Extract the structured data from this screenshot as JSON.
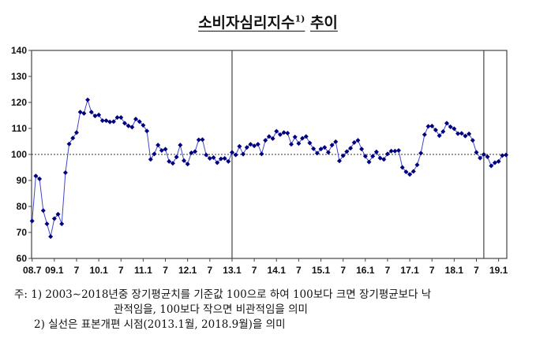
{
  "title": {
    "main": "소비자심리지수",
    "sup": "1)",
    "suffix": "추이"
  },
  "chart_data": {
    "type": "line",
    "title": "소비자심리지수1) 추이",
    "start": "2008.7",
    "end": "2019.3",
    "frequency": "monthly",
    "ylim": [
      60,
      140
    ],
    "yticks": [
      60,
      70,
      80,
      90,
      100,
      110,
      120,
      130,
      140
    ],
    "reference_line": 100,
    "xtick_labels": [
      "08.7",
      "09.1",
      "7",
      "10.1",
      "7",
      "11.1",
      "7",
      "12.1",
      "7",
      "13.1",
      "7",
      "14.1",
      "7",
      "15.1",
      "7",
      "16.1",
      "7",
      "17.1",
      "7",
      "18.1",
      "7",
      "19.1"
    ],
    "vertical_lines": [
      "2013.1",
      "2018.9"
    ],
    "series": [
      {
        "name": "소비자심리지수",
        "color": "#00007f",
        "values": [
          74.4,
          91.7,
          90.6,
          78.4,
          73.3,
          68.4,
          75.3,
          77.0,
          73.3,
          93.0,
          104.0,
          106.3,
          108.4,
          116.3,
          115.8,
          121.0,
          116.3,
          114.8,
          115.2,
          113.0,
          113.0,
          112.5,
          112.6,
          114.2,
          114.2,
          112.0,
          111.0,
          110.5,
          113.6,
          112.6,
          111.2,
          109.0,
          98.1,
          100.2,
          103.6,
          101.5,
          102.0,
          97.3,
          96.6,
          99.0,
          103.6,
          97.6,
          96.3,
          100.6,
          101.1,
          105.6,
          105.7,
          99.8,
          98.5,
          98.8,
          96.8,
          98.3,
          98.5,
          97.3,
          100.8,
          99.8,
          103.1,
          100.1,
          102.7,
          103.9,
          103.3,
          103.9,
          100.2,
          105.4,
          106.9,
          106.1,
          108.9,
          107.6,
          108.4,
          108.2,
          103.9,
          106.7,
          104.2,
          106.2,
          106.9,
          104.4,
          102.2,
          100.5,
          102.1,
          102.7,
          100.8,
          103.6,
          104.9,
          97.5,
          99.5,
          101.1,
          102.4,
          104.6,
          105.4,
          102.1,
          99.3,
          97.1,
          99.3,
          101.0,
          98.6,
          98.1,
          100.2,
          101.3,
          101.3,
          101.5,
          95.0,
          93.3,
          92.3,
          93.5,
          96.0,
          100.5,
          107.6,
          110.8,
          110.9,
          109.4,
          107.2,
          108.8,
          112.0,
          110.6,
          109.9,
          108.0,
          108.1,
          107.1,
          107.9,
          105.4,
          100.8,
          98.6,
          100.0,
          99.1,
          95.6,
          96.8,
          97.3,
          99.6,
          99.8
        ]
      }
    ]
  },
  "notes": {
    "line1": "주: 1) 2003∼2018년중 장기평균치를 기준값 100으로 하여 100보다 크면 장기평균보다 낙",
    "line2": "관적임을, 100보다 작으면 비관적임을 의미",
    "line3": "2) 실선은 표본개편 시점(2013.1월, 2018.9월)을 의미"
  }
}
